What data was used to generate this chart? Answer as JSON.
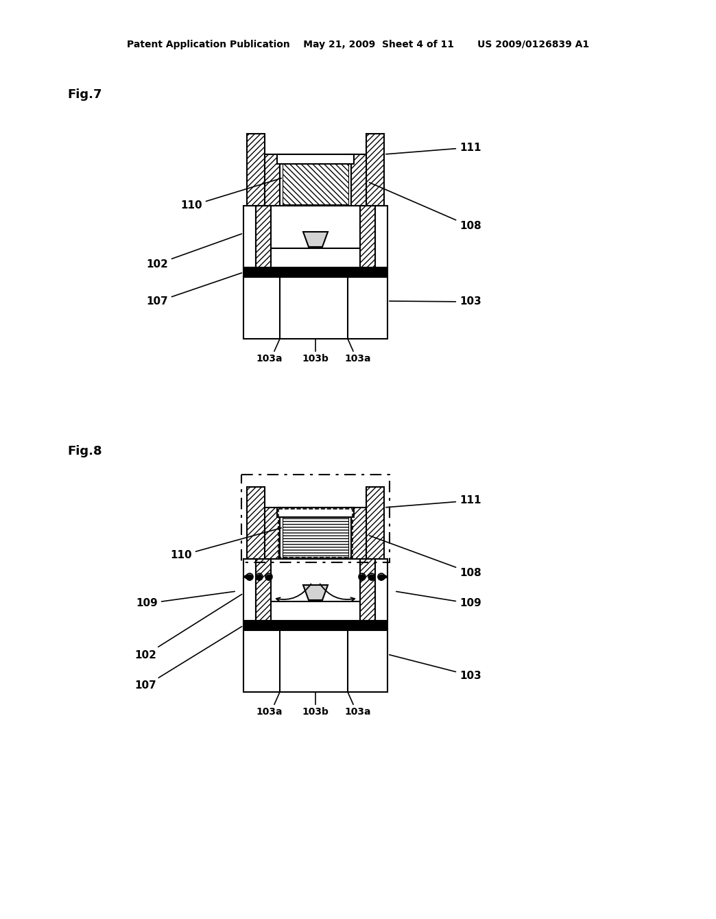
{
  "bg_color": "#ffffff",
  "header_text": "Patent Application Publication    May 21, 2009  Sheet 4 of 11       US 2009/0126839 A1",
  "fig7_label": "Fig.7",
  "fig8_label": "Fig.8",
  "text_color": "#000000",
  "line_color": "#000000"
}
